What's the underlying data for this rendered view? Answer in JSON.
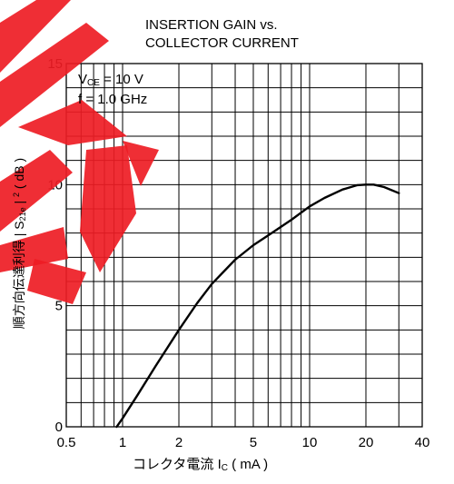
{
  "chart_data": {
    "type": "line",
    "title_lines": [
      "INSERTION GAIN vs.",
      "COLLECTOR CURRENT"
    ],
    "conditions": {
      "vce_symbol": "V",
      "vce_sub": "CE",
      "vce_value": " = 10 V",
      "freq": "f = 1.0 GHz"
    },
    "ylabel": {
      "prefix": "順方向伝達利得 | S",
      "sub": "21e",
      "bar": " | ",
      "sup": "2",
      "unit": " ( dB )"
    },
    "xlabel": {
      "prefix": "コレクタ電流  I",
      "sub": "C",
      "unit": " ( mA )"
    },
    "x_scale": "log",
    "xlim": [
      0.5,
      40
    ],
    "ylim": [
      0,
      15
    ],
    "x_ticks": [
      0.5,
      1,
      2,
      5,
      10,
      20,
      40
    ],
    "x_tick_labels": [
      "0.5",
      "1",
      "2",
      "5",
      "10",
      "20",
      "40"
    ],
    "y_ticks": [
      0,
      5,
      10,
      15
    ],
    "y_tick_labels": [
      "0",
      "5",
      "10",
      "15"
    ],
    "y_minor_step": 1,
    "x_minor": [
      0.6,
      0.7,
      0.8,
      0.9,
      3,
      4,
      6,
      7,
      8,
      9,
      30
    ],
    "grid": true,
    "series": [
      {
        "x": [
          0.93,
          1.0,
          1.2,
          1.5,
          2.0,
          2.5,
          3.0,
          4.0,
          5.0,
          6.0,
          7.0,
          8.0,
          10.0,
          12.0,
          15.0,
          18.0,
          20.0,
          22.0,
          25.0,
          30.0
        ],
        "y": [
          0.0,
          0.35,
          1.3,
          2.5,
          4.0,
          5.1,
          5.9,
          6.9,
          7.5,
          7.9,
          8.25,
          8.55,
          9.1,
          9.45,
          9.8,
          9.98,
          10.0,
          10.0,
          9.9,
          9.65
        ]
      }
    ],
    "colors": {
      "watermark": "#ee1c24",
      "line": "#000000"
    }
  }
}
